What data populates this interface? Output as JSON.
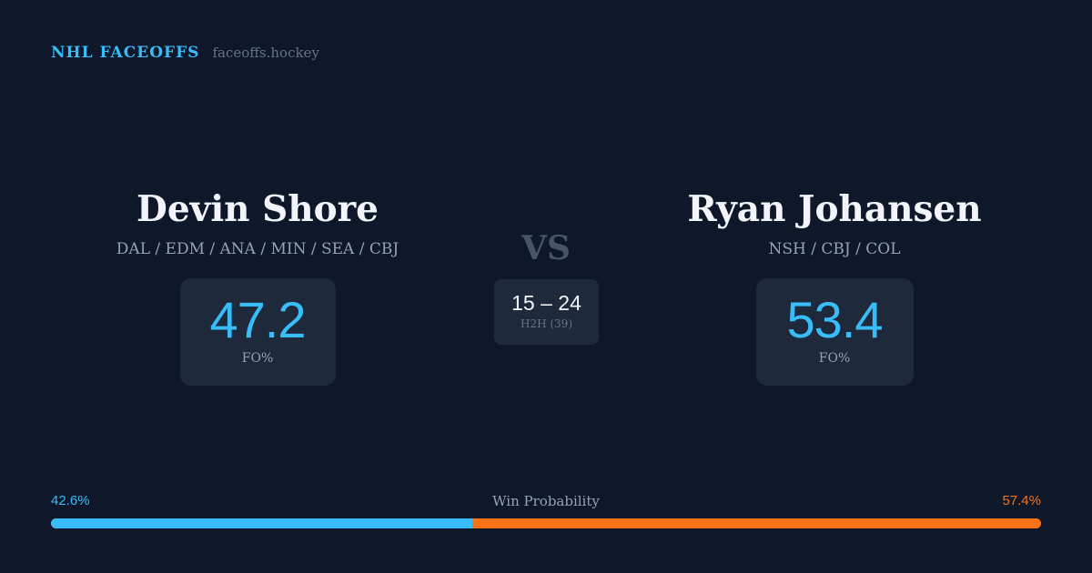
{
  "brand": {
    "name": "NHL FACEOFFS",
    "domain": "faceoffs.hockey"
  },
  "colors": {
    "background": "#0f172a",
    "card": "#1e293b",
    "accent_left": "#38bdf8",
    "accent_right": "#f97316"
  },
  "matchup": {
    "vs_label": "VS",
    "player_left": {
      "name": "Devin Shore",
      "teams": "DAL / EDM / ANA / MIN / SEA / CBJ",
      "stat_value": "47.2",
      "stat_label": "FO%"
    },
    "player_right": {
      "name": "Ryan Johansen",
      "teams": "NSH / CBJ / COL",
      "stat_value": "53.4",
      "stat_label": "FO%"
    },
    "head_to_head": {
      "score": "15 – 24",
      "label": "H2H (39)"
    }
  },
  "win_probability": {
    "title": "Win Probability",
    "left_label": "42.6%",
    "right_label": "57.4%",
    "left_fraction": 0.426,
    "right_fraction": 0.574
  }
}
